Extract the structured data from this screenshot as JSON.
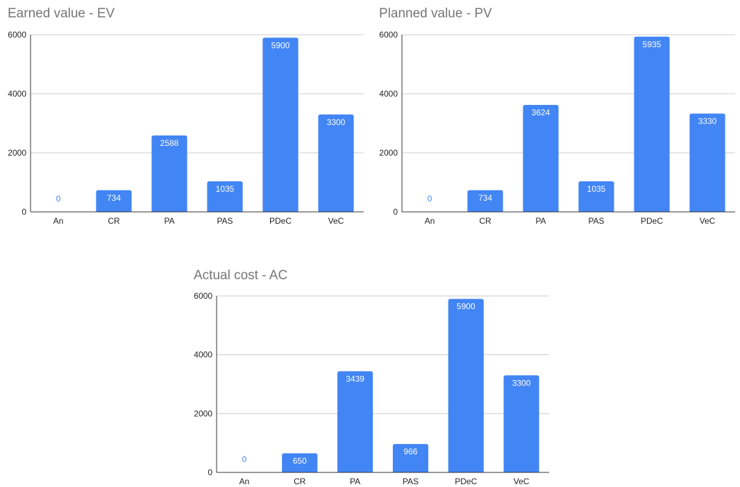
{
  "charts": [
    {
      "id": "ev",
      "chart_data": {
        "type": "bar",
        "title": "Earned value - EV",
        "categories": [
          "An",
          "CR",
          "PA",
          "PAS",
          "PDeC",
          "VeC"
        ],
        "values": [
          0,
          734,
          2588,
          1035,
          5900,
          3300
        ],
        "ylim": [
          0,
          6000
        ],
        "yticks": [
          0,
          2000,
          4000,
          6000
        ],
        "xlabel": "",
        "ylabel": "",
        "grid": true,
        "legend": "none",
        "bar_color": "#4285f4",
        "label_color": "#ffffff",
        "zero_label_color": "#4285f4"
      }
    },
    {
      "id": "pv",
      "chart_data": {
        "type": "bar",
        "title": "Planned value - PV",
        "categories": [
          "An",
          "CR",
          "PA",
          "PAS",
          "PDeC",
          "VeC"
        ],
        "values": [
          0,
          734,
          3624,
          1035,
          5935,
          3330
        ],
        "ylim": [
          0,
          6000
        ],
        "yticks": [
          0,
          2000,
          4000,
          6000
        ],
        "xlabel": "",
        "ylabel": "",
        "grid": true,
        "legend": "none",
        "bar_color": "#4285f4",
        "label_color": "#ffffff",
        "zero_label_color": "#4285f4"
      }
    },
    {
      "id": "ac",
      "chart_data": {
        "type": "bar",
        "title": "Actual cost - AC",
        "categories": [
          "An",
          "CR",
          "PA",
          "PAS",
          "PDeC",
          "VeC"
        ],
        "values": [
          0,
          650,
          3439,
          966,
          5900,
          3300
        ],
        "ylim": [
          0,
          6000
        ],
        "yticks": [
          0,
          2000,
          4000,
          6000
        ],
        "xlabel": "",
        "ylabel": "",
        "grid": true,
        "legend": "none",
        "bar_color": "#4285f4",
        "label_color": "#ffffff",
        "zero_label_color": "#4285f4"
      }
    }
  ]
}
